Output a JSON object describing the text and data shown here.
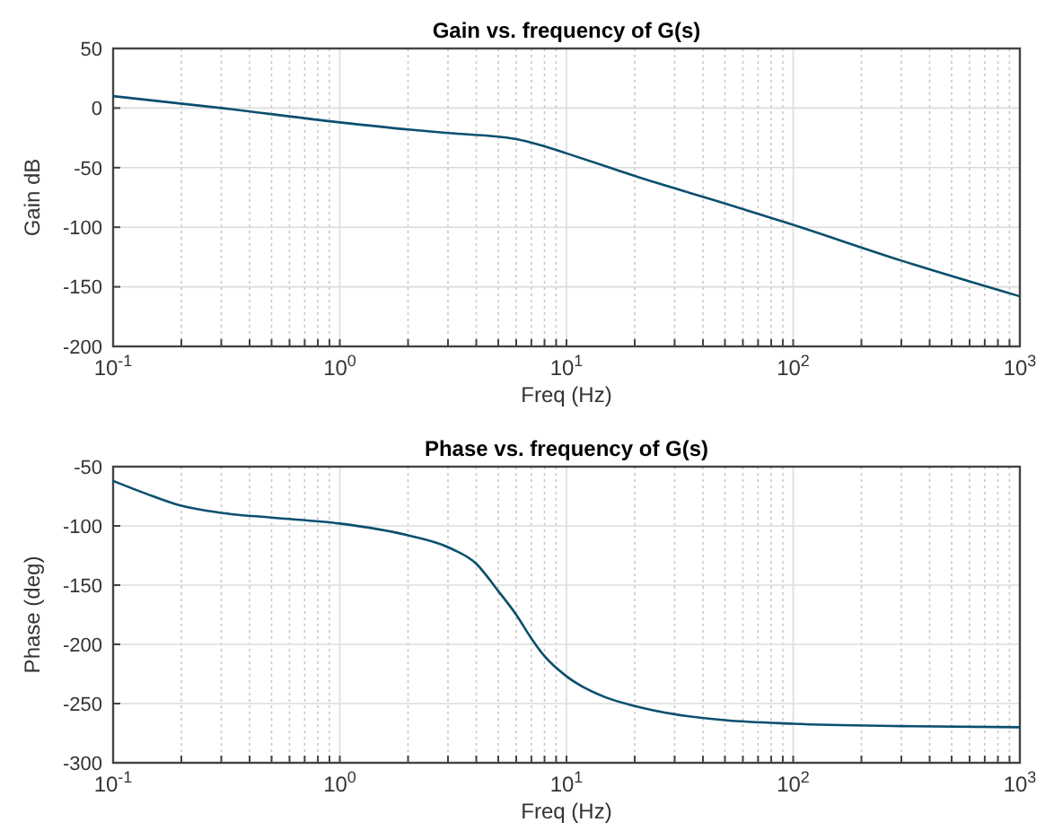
{
  "chart_data": [
    {
      "type": "line",
      "title": "Gain vs. frequency of G(s)",
      "xlabel": "Freq (Hz)",
      "ylabel": "Gain dB",
      "log": "x",
      "grid": true,
      "xlim": [
        0.1,
        1000
      ],
      "ylim": [
        -200,
        50
      ],
      "xticks": [
        {
          "value": 0.1,
          "label": "10$^{-1}$"
        },
        {
          "value": 0.2,
          "label": null
        },
        {
          "value": 0.3,
          "label": null
        },
        {
          "value": 0.4,
          "label": null
        },
        {
          "value": 0.5,
          "label": null
        },
        {
          "value": 0.6,
          "label": null
        },
        {
          "value": 0.7,
          "label": null
        },
        {
          "value": 0.8,
          "label": null
        },
        {
          "value": 0.9,
          "label": null
        },
        {
          "value": 1,
          "label": "10$^{0}$"
        },
        {
          "value": 2,
          "label": null
        },
        {
          "value": 3,
          "label": null
        },
        {
          "value": 4,
          "label": null
        },
        {
          "value": 5,
          "label": null
        },
        {
          "value": 6,
          "label": null
        },
        {
          "value": 7,
          "label": null
        },
        {
          "value": 8,
          "label": null
        },
        {
          "value": 9,
          "label": null
        },
        {
          "value": 10,
          "label": "10$^{1}$"
        },
        {
          "value": 20,
          "label": null
        },
        {
          "value": 30,
          "label": null
        },
        {
          "value": 40,
          "label": null
        },
        {
          "value": 50,
          "label": null
        },
        {
          "value": 60,
          "label": null
        },
        {
          "value": 70,
          "label": null
        },
        {
          "value": 80,
          "label": null
        },
        {
          "value": 90,
          "label": null
        },
        {
          "value": 100,
          "label": "10$^{2}$"
        },
        {
          "value": 200,
          "label": null
        },
        {
          "value": 300,
          "label": null
        },
        {
          "value": 400,
          "label": null
        },
        {
          "value": 500,
          "label": null
        },
        {
          "value": 600,
          "label": null
        },
        {
          "value": 700,
          "label": null
        },
        {
          "value": 800,
          "label": null
        },
        {
          "value": 900,
          "label": null
        },
        {
          "value": 1000,
          "label": "10$^{3}$"
        }
      ],
      "yticks": [
        -200,
        -150,
        -100,
        -50,
        0,
        50
      ],
      "x": [
        0.1,
        0.3,
        1,
        2,
        3,
        5,
        6,
        7,
        8,
        10,
        15,
        20,
        50,
        100,
        300,
        1000
      ],
      "series": [
        {
          "color": "#0a4f6e",
          "values": [
            10,
            0,
            -12,
            -18,
            -21,
            -24,
            -26,
            -29,
            -32,
            -38,
            -49,
            -57,
            -80,
            -98,
            -128,
            -158
          ]
        }
      ]
    },
    {
      "type": "line",
      "title": "Phase vs. frequency of G(s)",
      "xlabel": "Freq (Hz)",
      "ylabel": "Phase (deg)",
      "log": "x",
      "grid": true,
      "xlim": [
        0.1,
        1000
      ],
      "ylim": [
        -300,
        -50
      ],
      "xticks": [
        {
          "value": 0.1,
          "label": "10$^{-1}$"
        },
        {
          "value": 0.2,
          "label": null
        },
        {
          "value": 0.3,
          "label": null
        },
        {
          "value": 0.4,
          "label": null
        },
        {
          "value": 0.5,
          "label": null
        },
        {
          "value": 0.6,
          "label": null
        },
        {
          "value": 0.7,
          "label": null
        },
        {
          "value": 0.8,
          "label": null
        },
        {
          "value": 0.9,
          "label": null
        },
        {
          "value": 1,
          "label": "10$^{0}$"
        },
        {
          "value": 2,
          "label": null
        },
        {
          "value": 3,
          "label": null
        },
        {
          "value": 4,
          "label": null
        },
        {
          "value": 5,
          "label": null
        },
        {
          "value": 6,
          "label": null
        },
        {
          "value": 7,
          "label": null
        },
        {
          "value": 8,
          "label": null
        },
        {
          "value": 9,
          "label": null
        },
        {
          "value": 10,
          "label": "10$^{1}$"
        },
        {
          "value": 20,
          "label": null
        },
        {
          "value": 30,
          "label": null
        },
        {
          "value": 40,
          "label": null
        },
        {
          "value": 50,
          "label": null
        },
        {
          "value": 60,
          "label": null
        },
        {
          "value": 70,
          "label": null
        },
        {
          "value": 80,
          "label": null
        },
        {
          "value": 90,
          "label": null
        },
        {
          "value": 100,
          "label": "10$^{2}$"
        },
        {
          "value": 200,
          "label": null
        },
        {
          "value": 300,
          "label": null
        },
        {
          "value": 400,
          "label": null
        },
        {
          "value": 500,
          "label": null
        },
        {
          "value": 600,
          "label": null
        },
        {
          "value": 700,
          "label": null
        },
        {
          "value": 800,
          "label": null
        },
        {
          "value": 900,
          "label": null
        },
        {
          "value": 1000,
          "label": "10$^{3}$"
        }
      ],
      "yticks": [
        -300,
        -250,
        -200,
        -150,
        -100,
        -50
      ],
      "x": [
        0.1,
        0.15,
        0.2,
        0.3,
        0.5,
        1,
        2,
        3,
        4,
        5,
        6,
        7,
        8,
        10,
        15,
        20,
        30,
        50,
        100,
        300,
        1000
      ],
      "series": [
        {
          "color": "#0a4f6e",
          "values": [
            -62,
            -75,
            -83,
            -89,
            -93,
            -98,
            -108,
            -118,
            -132,
            -155,
            -175,
            -195,
            -210,
            -227,
            -245,
            -252,
            -259,
            -264,
            -267,
            -269,
            -270
          ]
        }
      ]
    }
  ]
}
